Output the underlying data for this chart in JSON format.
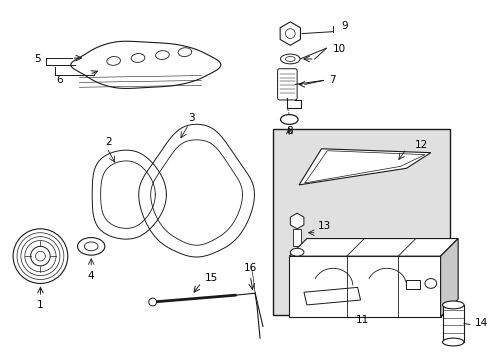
{
  "bg_color": "#ffffff",
  "line_color": "#1a1a1a",
  "box_bg": "#e0e0e0",
  "figsize": [
    4.89,
    3.6
  ],
  "dpi": 100,
  "label_fontsize": 7.5,
  "lw": 0.8
}
